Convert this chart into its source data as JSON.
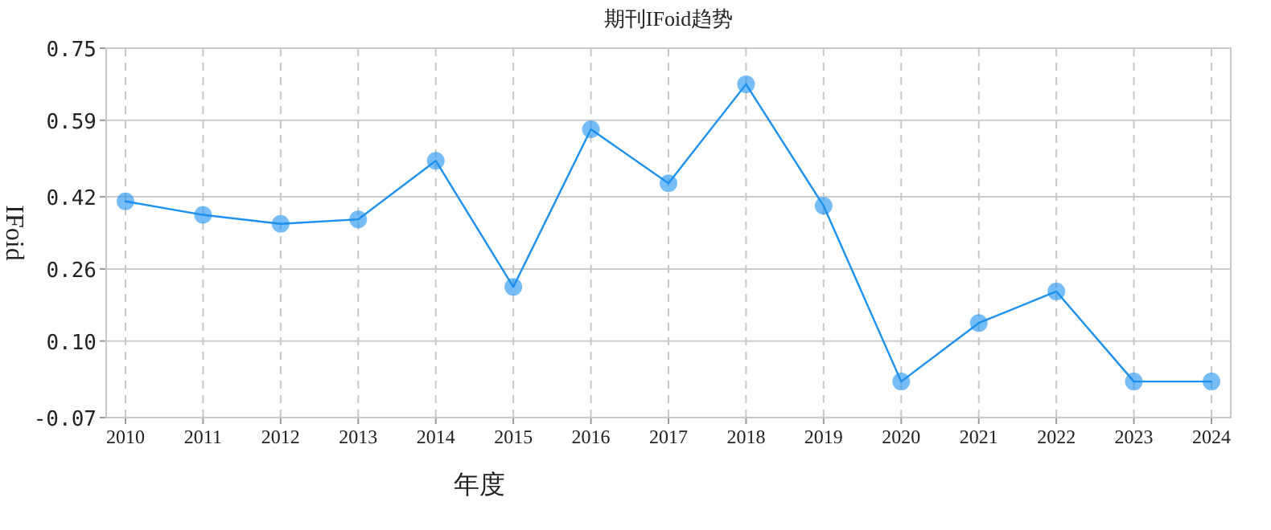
{
  "chart_data": {
    "type": "line",
    "title": "期刊IFoid趋势",
    "xlabel": "年度",
    "ylabel": "IFoid",
    "categories": [
      "2010",
      "2011",
      "2012",
      "2013",
      "2014",
      "2015",
      "2016",
      "2017",
      "2018",
      "2019",
      "2020",
      "2021",
      "2022",
      "2023",
      "2024"
    ],
    "series": [
      {
        "color": "#1a90f0",
        "values": [
          0.41,
          0.38,
          0.36,
          0.37,
          0.5,
          0.22,
          0.57,
          0.45,
          0.67,
          0.4,
          0.01,
          0.14,
          0.21,
          0.01,
          0.01
        ]
      }
    ],
    "ylim": [
      -0.07,
      0.75
    ],
    "yticks": [
      -0.07,
      {
        "value": 0.1,
        "label": "0.10"
      },
      0.26,
      0.42,
      0.59,
      0.75
    ],
    "grid": true,
    "marker": "circle",
    "line_style": "solid"
  }
}
